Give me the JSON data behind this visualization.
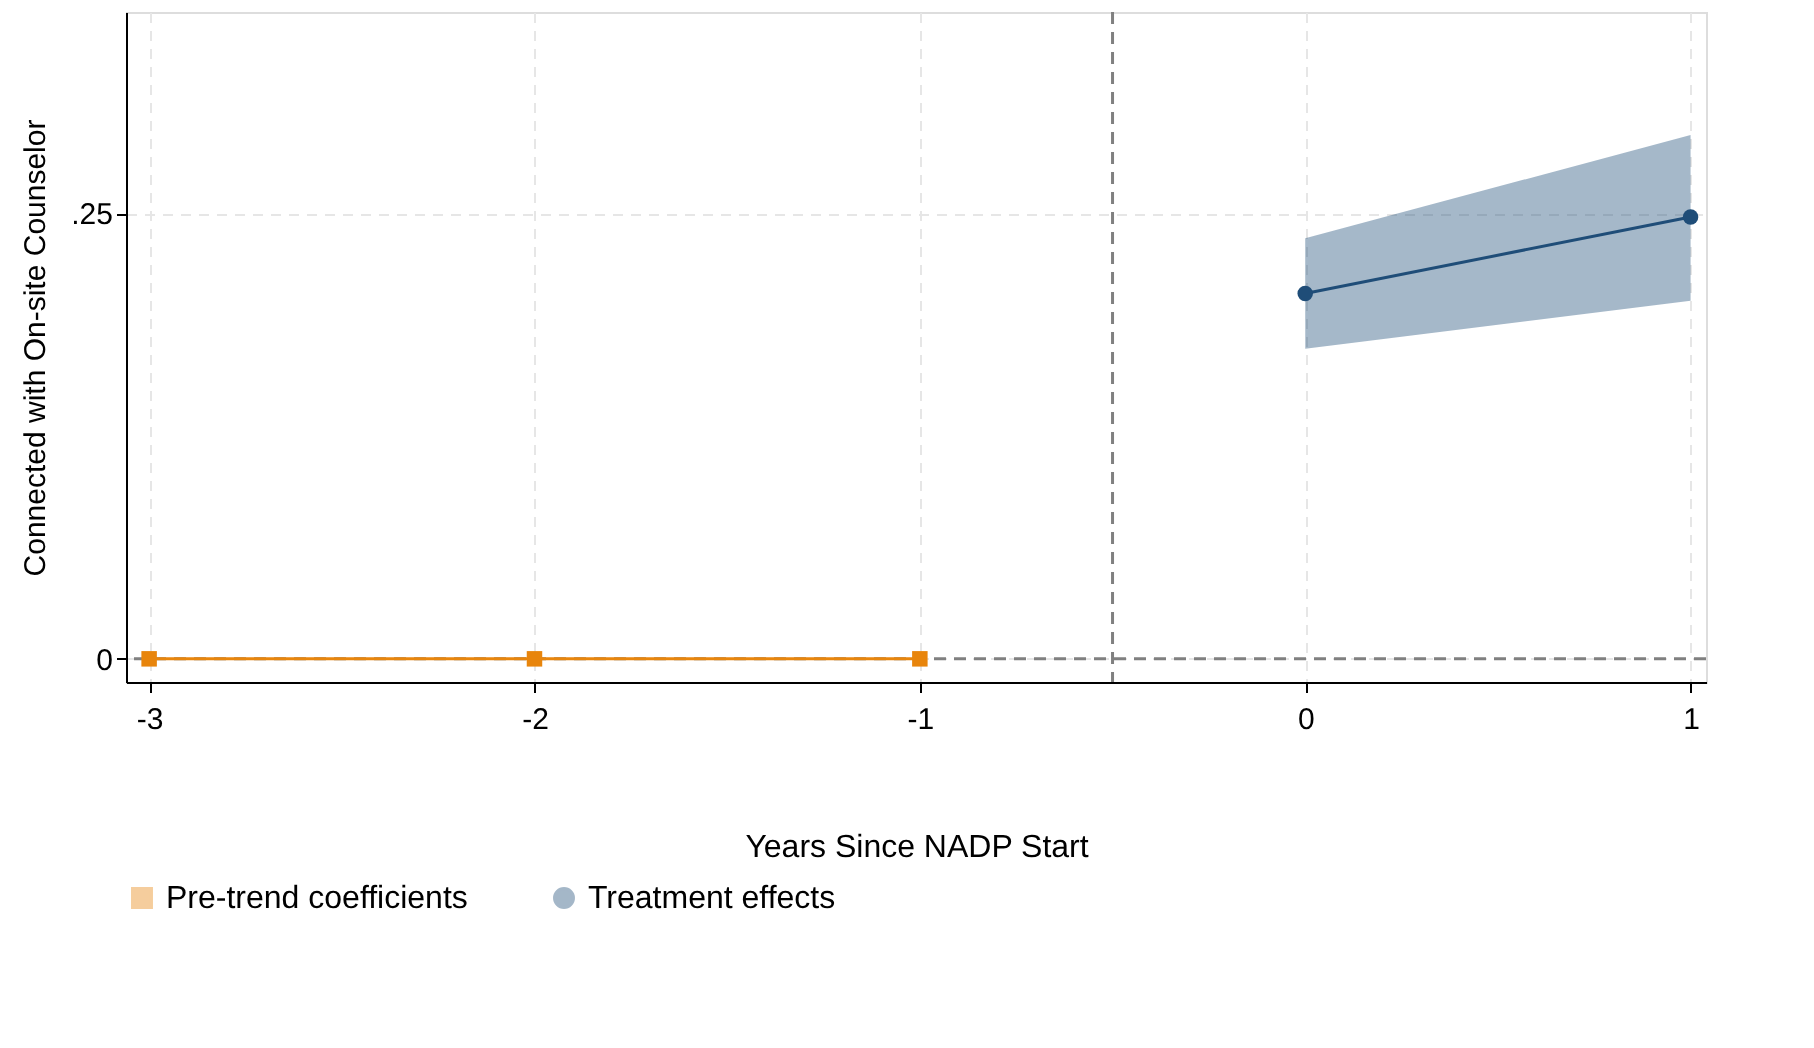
{
  "chart_data": {
    "type": "line",
    "xlabel": "Years Since NADP Start",
    "ylabel": "Connected with On-site Counselor",
    "xlim": [
      -3.06,
      1.04
    ],
    "ylim": [
      -0.013,
      0.363
    ],
    "xticks": [
      -3,
      -2,
      -1,
      0,
      1
    ],
    "yticks": [
      0,
      {
        "value": 0.25,
        "label": ".25"
      }
    ],
    "series": [
      {
        "name": "Pre-trend coefficients",
        "color": "#e8850c",
        "marker": "square",
        "x": [
          -3,
          -2,
          -1
        ],
        "values": [
          0,
          0,
          0
        ]
      },
      {
        "name": "Treatment effects",
        "color": "#1f4d78",
        "marker": "circle",
        "x": [
          0,
          1
        ],
        "values": [
          0.205,
          0.248
        ],
        "lower": [
          0.174,
          0.201
        ],
        "upper": [
          0.236,
          0.294
        ]
      }
    ],
    "ref_lines": [
      {
        "axis": "x",
        "value": -0.5,
        "color": "#808080",
        "line_style": "dashed"
      },
      {
        "axis": "y",
        "value": 0,
        "color": "#808080",
        "line_style": "dashed"
      }
    ],
    "grid": true,
    "legend": "bottom",
    "line_style": "solid"
  }
}
